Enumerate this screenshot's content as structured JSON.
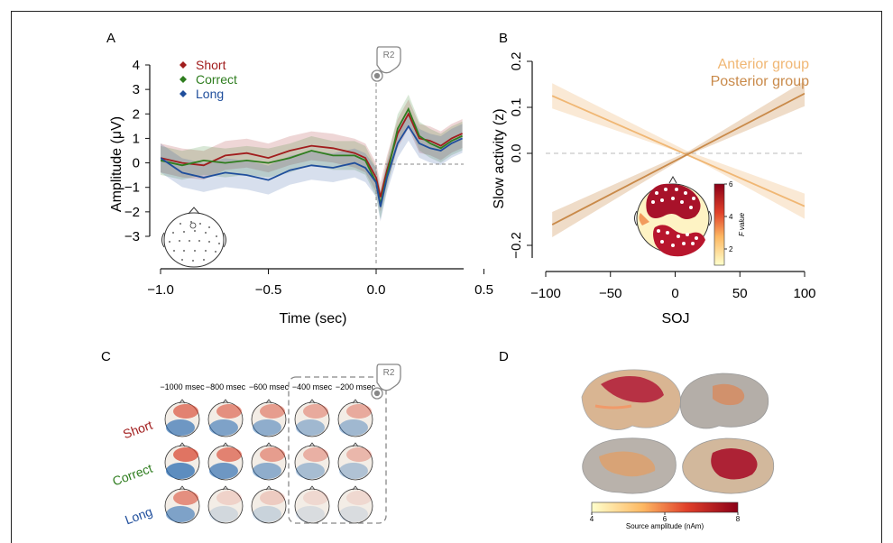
{
  "panels": {
    "a": {
      "letter": "A"
    },
    "b": {
      "letter": "B"
    },
    "c": {
      "letter": "C"
    },
    "d": {
      "letter": "D"
    }
  },
  "response_label": "R2",
  "colors": {
    "short": "#a11d1d",
    "correct": "#2f7d1f",
    "long": "#1f4e9c",
    "anterior": "#f0b774",
    "posterior": "#c98a4a"
  },
  "chart_data": [
    {
      "panel": "A",
      "type": "line",
      "title": "",
      "xlabel": "Time (sec)",
      "ylabel": "Amplitude (μV)",
      "xlim": [
        -1.0,
        0.4
      ],
      "ylim": [
        -3,
        4
      ],
      "xticks": [
        "−1.0",
        "−0.5",
        "0.0",
        "0.5"
      ],
      "xtick_values": [
        -1.0,
        -0.5,
        0.0,
        0.5
      ],
      "yticks": [
        "4",
        "3",
        "2",
        "1",
        "0",
        "−1",
        "−2",
        "−3"
      ],
      "ytick_values": [
        4,
        3,
        2,
        1,
        0,
        -1,
        -2,
        -3
      ],
      "x": [
        -1.0,
        -0.9,
        -0.8,
        -0.7,
        -0.6,
        -0.5,
        -0.4,
        -0.3,
        -0.2,
        -0.1,
        -0.05,
        0.0,
        0.02,
        0.05,
        0.1,
        0.15,
        0.2,
        0.25,
        0.3,
        0.35,
        0.4
      ],
      "series": [
        {
          "name": "Short",
          "color": "#a11d1d",
          "values": [
            0.2,
            0.0,
            -0.1,
            0.3,
            0.4,
            0.2,
            0.5,
            0.7,
            0.6,
            0.4,
            0.2,
            -0.6,
            -1.4,
            -0.3,
            1.2,
            2.0,
            1.0,
            0.9,
            0.7,
            1.0,
            1.2
          ]
        },
        {
          "name": "Correct",
          "color": "#2f7d1f",
          "values": [
            0.1,
            -0.1,
            0.1,
            0.0,
            0.1,
            0.0,
            0.2,
            0.5,
            0.3,
            0.3,
            0.1,
            -0.8,
            -1.7,
            -0.5,
            1.4,
            2.2,
            1.1,
            0.8,
            0.6,
            0.9,
            1.1
          ]
        },
        {
          "name": "Long",
          "color": "#1f4e9c",
          "values": [
            0.2,
            -0.4,
            -0.6,
            -0.4,
            -0.5,
            -0.7,
            -0.3,
            -0.1,
            -0.2,
            0.0,
            -0.2,
            -0.8,
            -1.8,
            -0.6,
            0.8,
            1.5,
            0.8,
            0.6,
            0.5,
            0.8,
            1.0
          ]
        }
      ]
    },
    {
      "panel": "B",
      "type": "line",
      "title": "",
      "xlabel": "SOJ",
      "ylabel": "Slow activity (z)",
      "xlim": [
        -100,
        100
      ],
      "ylim": [
        -0.25,
        0.2
      ],
      "xticks": [
        "−100",
        "−50",
        "0",
        "50",
        "100"
      ],
      "xtick_values": [
        -100,
        -50,
        0,
        50,
        100
      ],
      "yticks": [
        "0.2",
        "0.1",
        "0.0",
        "−0.2"
      ],
      "ytick_values": [
        0.2,
        0.1,
        0.0,
        -0.2
      ],
      "x": [
        -95,
        100
      ],
      "series": [
        {
          "name": "Anterior group",
          "color": "#f0b774",
          "values": [
            0.125,
            -0.115
          ]
        },
        {
          "name": "Posterior group",
          "color": "#c98a4a",
          "values": [
            -0.155,
            0.13
          ]
        }
      ],
      "inset_colorbar": {
        "label": "F value",
        "ticks": [
          "6",
          "4",
          "2"
        ],
        "tick_values": [
          6,
          4,
          2
        ],
        "range": [
          1,
          6
        ]
      }
    },
    {
      "panel": "C",
      "type": "heatmap",
      "columns": [
        "−1000 msec",
        "−800 msec",
        "−600 msec",
        "−400 msec",
        "−200 msec"
      ],
      "rows": [
        "Short",
        "Correct",
        "Long"
      ],
      "row_colors": [
        "#a11d1d",
        "#2f7d1f",
        "#1f4e9c"
      ],
      "map_strength": [
        [
          0.8,
          0.7,
          0.6,
          0.5,
          0.5
        ],
        [
          0.9,
          0.8,
          0.6,
          0.45,
          0.4
        ],
        [
          0.7,
          0.2,
          0.25,
          0.15,
          0.15
        ]
      ],
      "highlighted_columns": [
        "−400 msec",
        "−200 msec"
      ]
    },
    {
      "panel": "D",
      "type": "heatmap",
      "colorbar": {
        "label": "Source amplitude (nAm)",
        "ticks": [
          "4",
          "6",
          "8"
        ],
        "tick_values": [
          4,
          6,
          8
        ],
        "range": [
          4,
          8
        ]
      },
      "views": 4
    }
  ]
}
